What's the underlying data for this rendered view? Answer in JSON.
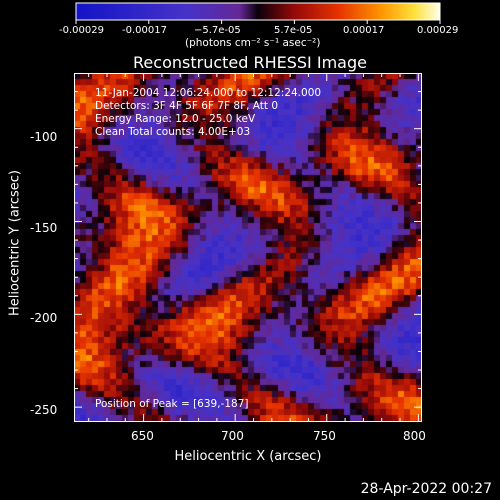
{
  "chart_data": {
    "type": "heatmap",
    "title": "Reconstructed RHESSI Image",
    "xlabel": "Heliocentric X (arcsec)",
    "ylabel": "Heliocentric Y (arcsec)",
    "xlim": [
      612,
      802
    ],
    "ylim": [
      -258,
      -70
    ],
    "xticks": [
      650,
      700,
      750,
      800
    ],
    "yticks": [
      -100,
      -150,
      -200,
      -250
    ],
    "annotations": {
      "time_range": "11-Jan-2004 12:06:24.000 to 12:12:24.000",
      "detectors": "Detectors: 3F 4F 5F 6F 7F 8F, Att 0",
      "energy_range": "Energy Range: 12.0 - 25.0 keV",
      "method_counts": "Clean     Total counts: 4.00E+03",
      "peak_position": "Position of Peak = [639,-187]"
    },
    "peak": [
      639,
      -187
    ],
    "colorbar": {
      "colormap": "red-temperature-with-blue",
      "range": [
        -0.00029,
        0.00029
      ],
      "tick_values": [
        "-0.00029",
        "-0.00017",
        "−5.7e-05",
        "5.7e-05",
        "0.00017",
        "0.00029"
      ],
      "unit_label": "(photons cm⁻² s⁻¹ asec⁻²)"
    },
    "grid": false
  },
  "footer": {
    "date": "28-Apr-2022 00:27"
  },
  "colors": {
    "background": "#000000",
    "foreground": "#ffffff",
    "negative": "#3030d0",
    "positive_low": "#a01010",
    "positive_mid": "#ff6000",
    "positive_high": "#ffffc0"
  }
}
